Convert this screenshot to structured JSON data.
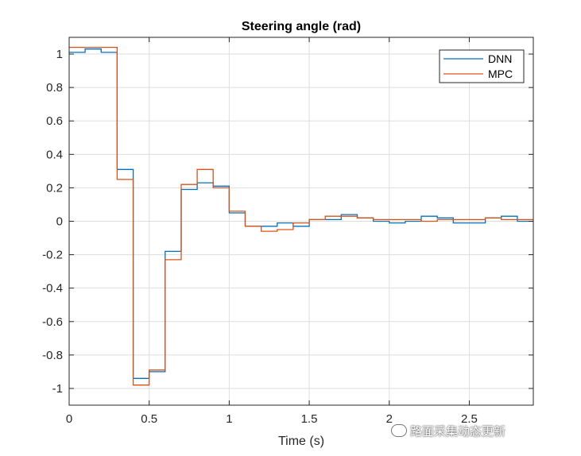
{
  "chart_data": {
    "type": "line",
    "title": "Steering angle (rad)",
    "xlabel": "Time (s)",
    "ylabel": "",
    "xlim": [
      0,
      2.9
    ],
    "ylim": [
      -1.1,
      1.1
    ],
    "xticks": [
      0,
      0.5,
      1,
      1.5,
      2,
      2.5
    ],
    "xtick_labels": [
      "0",
      "0.5",
      "1",
      "1.5",
      "2",
      "2.5"
    ],
    "yticks": [
      1,
      0.8,
      0.6,
      0.4,
      0.2,
      0,
      -0.2,
      -0.4,
      -0.6,
      -0.8,
      -1
    ],
    "ytick_labels": [
      "1",
      "0.8",
      "0.6",
      "0.4",
      "0.2",
      "0",
      "-0.2",
      "-0.4",
      "-0.6",
      "-0.8",
      "-1"
    ],
    "grid": true,
    "legend_position": "top-right",
    "step": true,
    "x": [
      0,
      0.1,
      0.2,
      0.3,
      0.4,
      0.5,
      0.6,
      0.7,
      0.8,
      0.9,
      1.0,
      1.1,
      1.2,
      1.3,
      1.4,
      1.5,
      1.6,
      1.7,
      1.8,
      1.9,
      2.0,
      2.1,
      2.2,
      2.3,
      2.4,
      2.5,
      2.6,
      2.7,
      2.8,
      2.9
    ],
    "series": [
      {
        "name": "DNN",
        "color": "#0072BD",
        "values": [
          1.01,
          1.03,
          1.01,
          0.31,
          -0.94,
          -0.9,
          -0.18,
          0.19,
          0.23,
          0.21,
          0.05,
          -0.03,
          -0.03,
          -0.01,
          -0.03,
          0.01,
          0.01,
          0.04,
          0.02,
          0.0,
          -0.01,
          0.0,
          0.03,
          0.02,
          -0.01,
          -0.01,
          0.02,
          0.03,
          0.0,
          0.0
        ]
      },
      {
        "name": "MPC",
        "color": "#D95319",
        "values": [
          1.04,
          1.04,
          1.04,
          0.25,
          -0.98,
          -0.89,
          -0.23,
          0.22,
          0.31,
          0.2,
          0.06,
          -0.03,
          -0.06,
          -0.05,
          -0.01,
          0.01,
          0.03,
          0.03,
          0.02,
          0.01,
          0.01,
          0.01,
          0.0,
          0.01,
          0.01,
          0.01,
          0.02,
          0.01,
          0.01,
          0.01
        ]
      }
    ]
  },
  "watermark": {
    "text": "路面采集动态更新",
    "icon": "wechat-icon"
  }
}
